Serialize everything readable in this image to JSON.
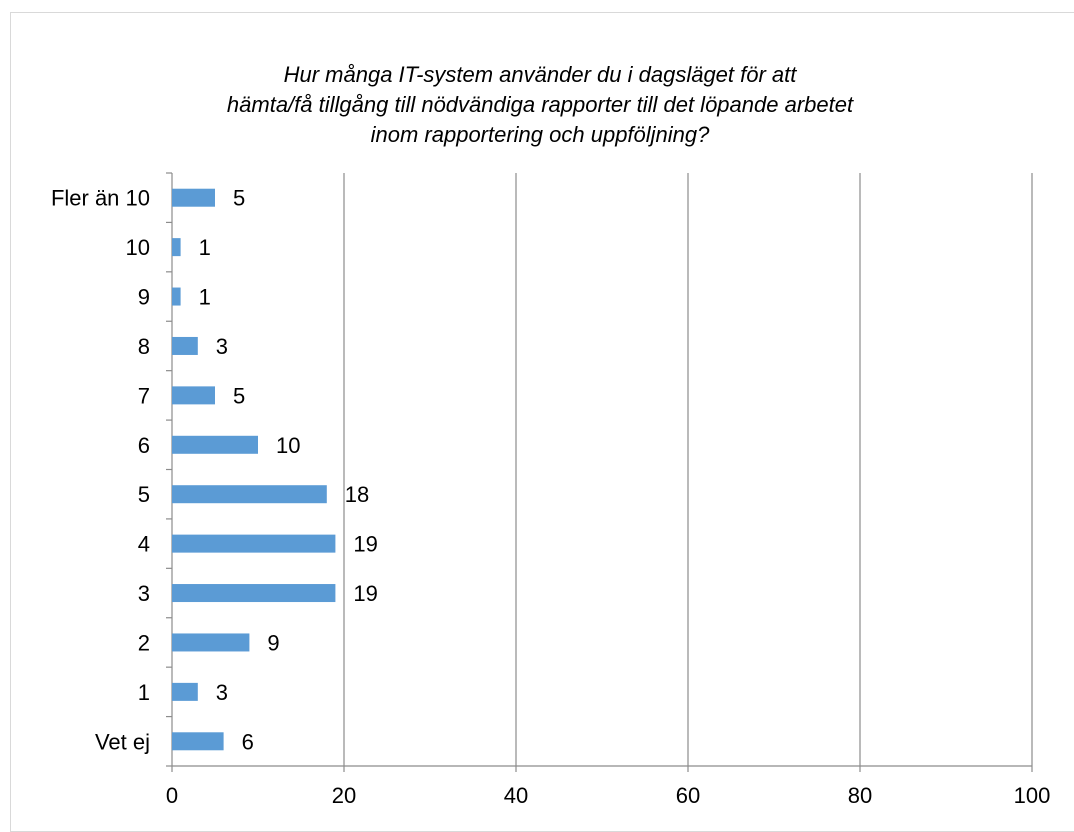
{
  "chart_data": {
    "type": "bar",
    "orientation": "horizontal",
    "title_lines": [
      "Hur många IT-system använder du i dagsläget för att",
      "hämta/få tillgång till nödvändiga rapporter till det löpande arbetet",
      "inom rapportering och uppföljning?"
    ],
    "categories": [
      "Fler än 10",
      "10",
      "9",
      "8",
      "7",
      "6",
      "5",
      "4",
      "3",
      "2",
      "1",
      "Vet ej"
    ],
    "values": [
      5,
      1,
      1,
      3,
      5,
      10,
      18,
      19,
      19,
      9,
      3,
      6
    ],
    "data_labels": [
      "5",
      "1",
      "1",
      "3",
      "5",
      "10",
      "18",
      "19",
      "19",
      "9",
      "3",
      "6"
    ],
    "xlim": [
      0,
      100
    ],
    "x_ticks": [
      0,
      20,
      40,
      60,
      80,
      100
    ],
    "x_tick_labels": [
      "0",
      "20",
      "40",
      "60",
      "80",
      "100"
    ],
    "grid": "vertical major gridlines",
    "legend": "none",
    "bar_color": "#5b9bd5",
    "grid_color": "#8c8c8c"
  }
}
